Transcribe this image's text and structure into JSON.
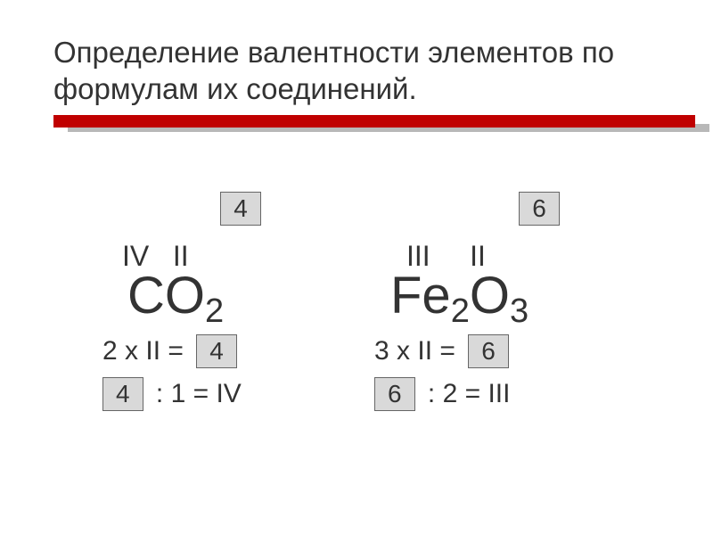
{
  "title": "Определение валентности элементов по формулам их соединений.",
  "colors": {
    "rule": "#c00000",
    "rule_shadow": "#b8b8b8",
    "box_bg": "#d9d9d9",
    "box_border": "#666666",
    "text": "#333333",
    "background": "#ffffff"
  },
  "fonts": {
    "title_size": 33,
    "valency_size": 32,
    "formula_size": 58,
    "sub_size": 38,
    "calc_size": 30,
    "box_size": 28
  },
  "left": {
    "top_box": "4",
    "valency_1": "IV",
    "valency_2": "II",
    "formula_el1": "C",
    "formula_el2": "O",
    "formula_sub2": "2",
    "calc1_prefix": "2 x II = ",
    "calc1_box": "4",
    "calc2_box": "4",
    "calc2_suffix": " : 1 = IV"
  },
  "right": {
    "top_box": "6",
    "valency_1": "III",
    "valency_2": "II",
    "formula_el1": "Fe",
    "formula_sub1": "2",
    "formula_el2": "O",
    "formula_sub2": "3",
    "calc1_prefix": "3 x II = ",
    "calc1_box": "6",
    "calc2_box": "6",
    "calc2_suffix": " : 2 = III"
  }
}
